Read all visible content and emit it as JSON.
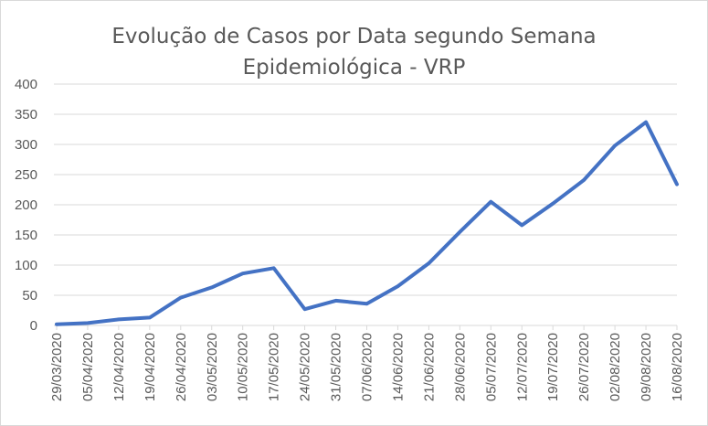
{
  "chart_data": {
    "type": "line",
    "title_line1": "Evolução de Casos por Data segundo Semana",
    "title_line2": "Epidemiológica - VRP",
    "xlabel": "",
    "ylabel": "",
    "ylim": [
      0,
      400
    ],
    "yticks": [
      "0",
      "50",
      "100",
      "150",
      "200",
      "250",
      "300",
      "350",
      "400"
    ],
    "grid": true,
    "legend": "none",
    "categories": [
      "29/03/2020",
      "05/04/2020",
      "12/04/2020",
      "19/04/2020",
      "26/04/2020",
      "03/05/2020",
      "10/05/2020",
      "17/05/2020",
      "24/05/2020",
      "31/05/2020",
      "07/06/2020",
      "14/06/2020",
      "21/06/2020",
      "28/06/2020",
      "05/07/2020",
      "12/07/2020",
      "19/07/2020",
      "26/07/2020",
      "02/08/2020",
      "09/08/2020",
      "16/08/2020"
    ],
    "series": [
      {
        "values": [
          2,
          4,
          10,
          13,
          46,
          63,
          86,
          95,
          27,
          41,
          36,
          65,
          103,
          155,
          205,
          166,
          202,
          241,
          298,
          337,
          234
        ]
      }
    ],
    "colors": {
      "line": "#4472c4",
      "grid": "#d9d9d9",
      "text": "#595959"
    }
  }
}
